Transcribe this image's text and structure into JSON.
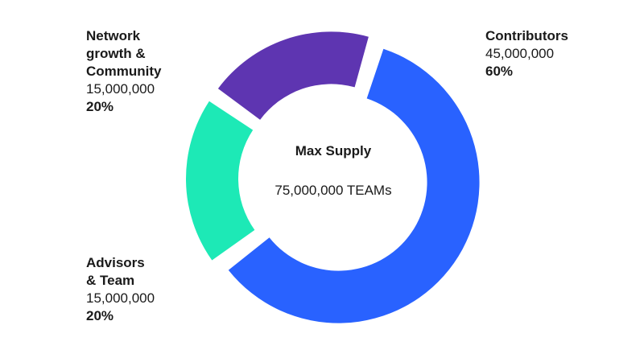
{
  "chart_data": {
    "type": "pie",
    "variant": "donut",
    "center": {
      "title": "Max Supply",
      "value": "75,000,000 TEAMs"
    },
    "slices": [
      {
        "name": "Contributors",
        "value": 45000000,
        "value_label": "45,000,000",
        "percent": 60,
        "percent_label": "60%",
        "color": "#2962ff"
      },
      {
        "name": "Advisors\n& Team",
        "value": 15000000,
        "value_label": "15,000,000",
        "percent": 20,
        "percent_label": "20%",
        "color": "#1de9b6"
      },
      {
        "name": "Network\ngrowth &\nCommunity",
        "value": 15000000,
        "value_label": "15,000,000",
        "percent": 20,
        "percent_label": "20%",
        "color": "#5e35b1"
      }
    ]
  }
}
